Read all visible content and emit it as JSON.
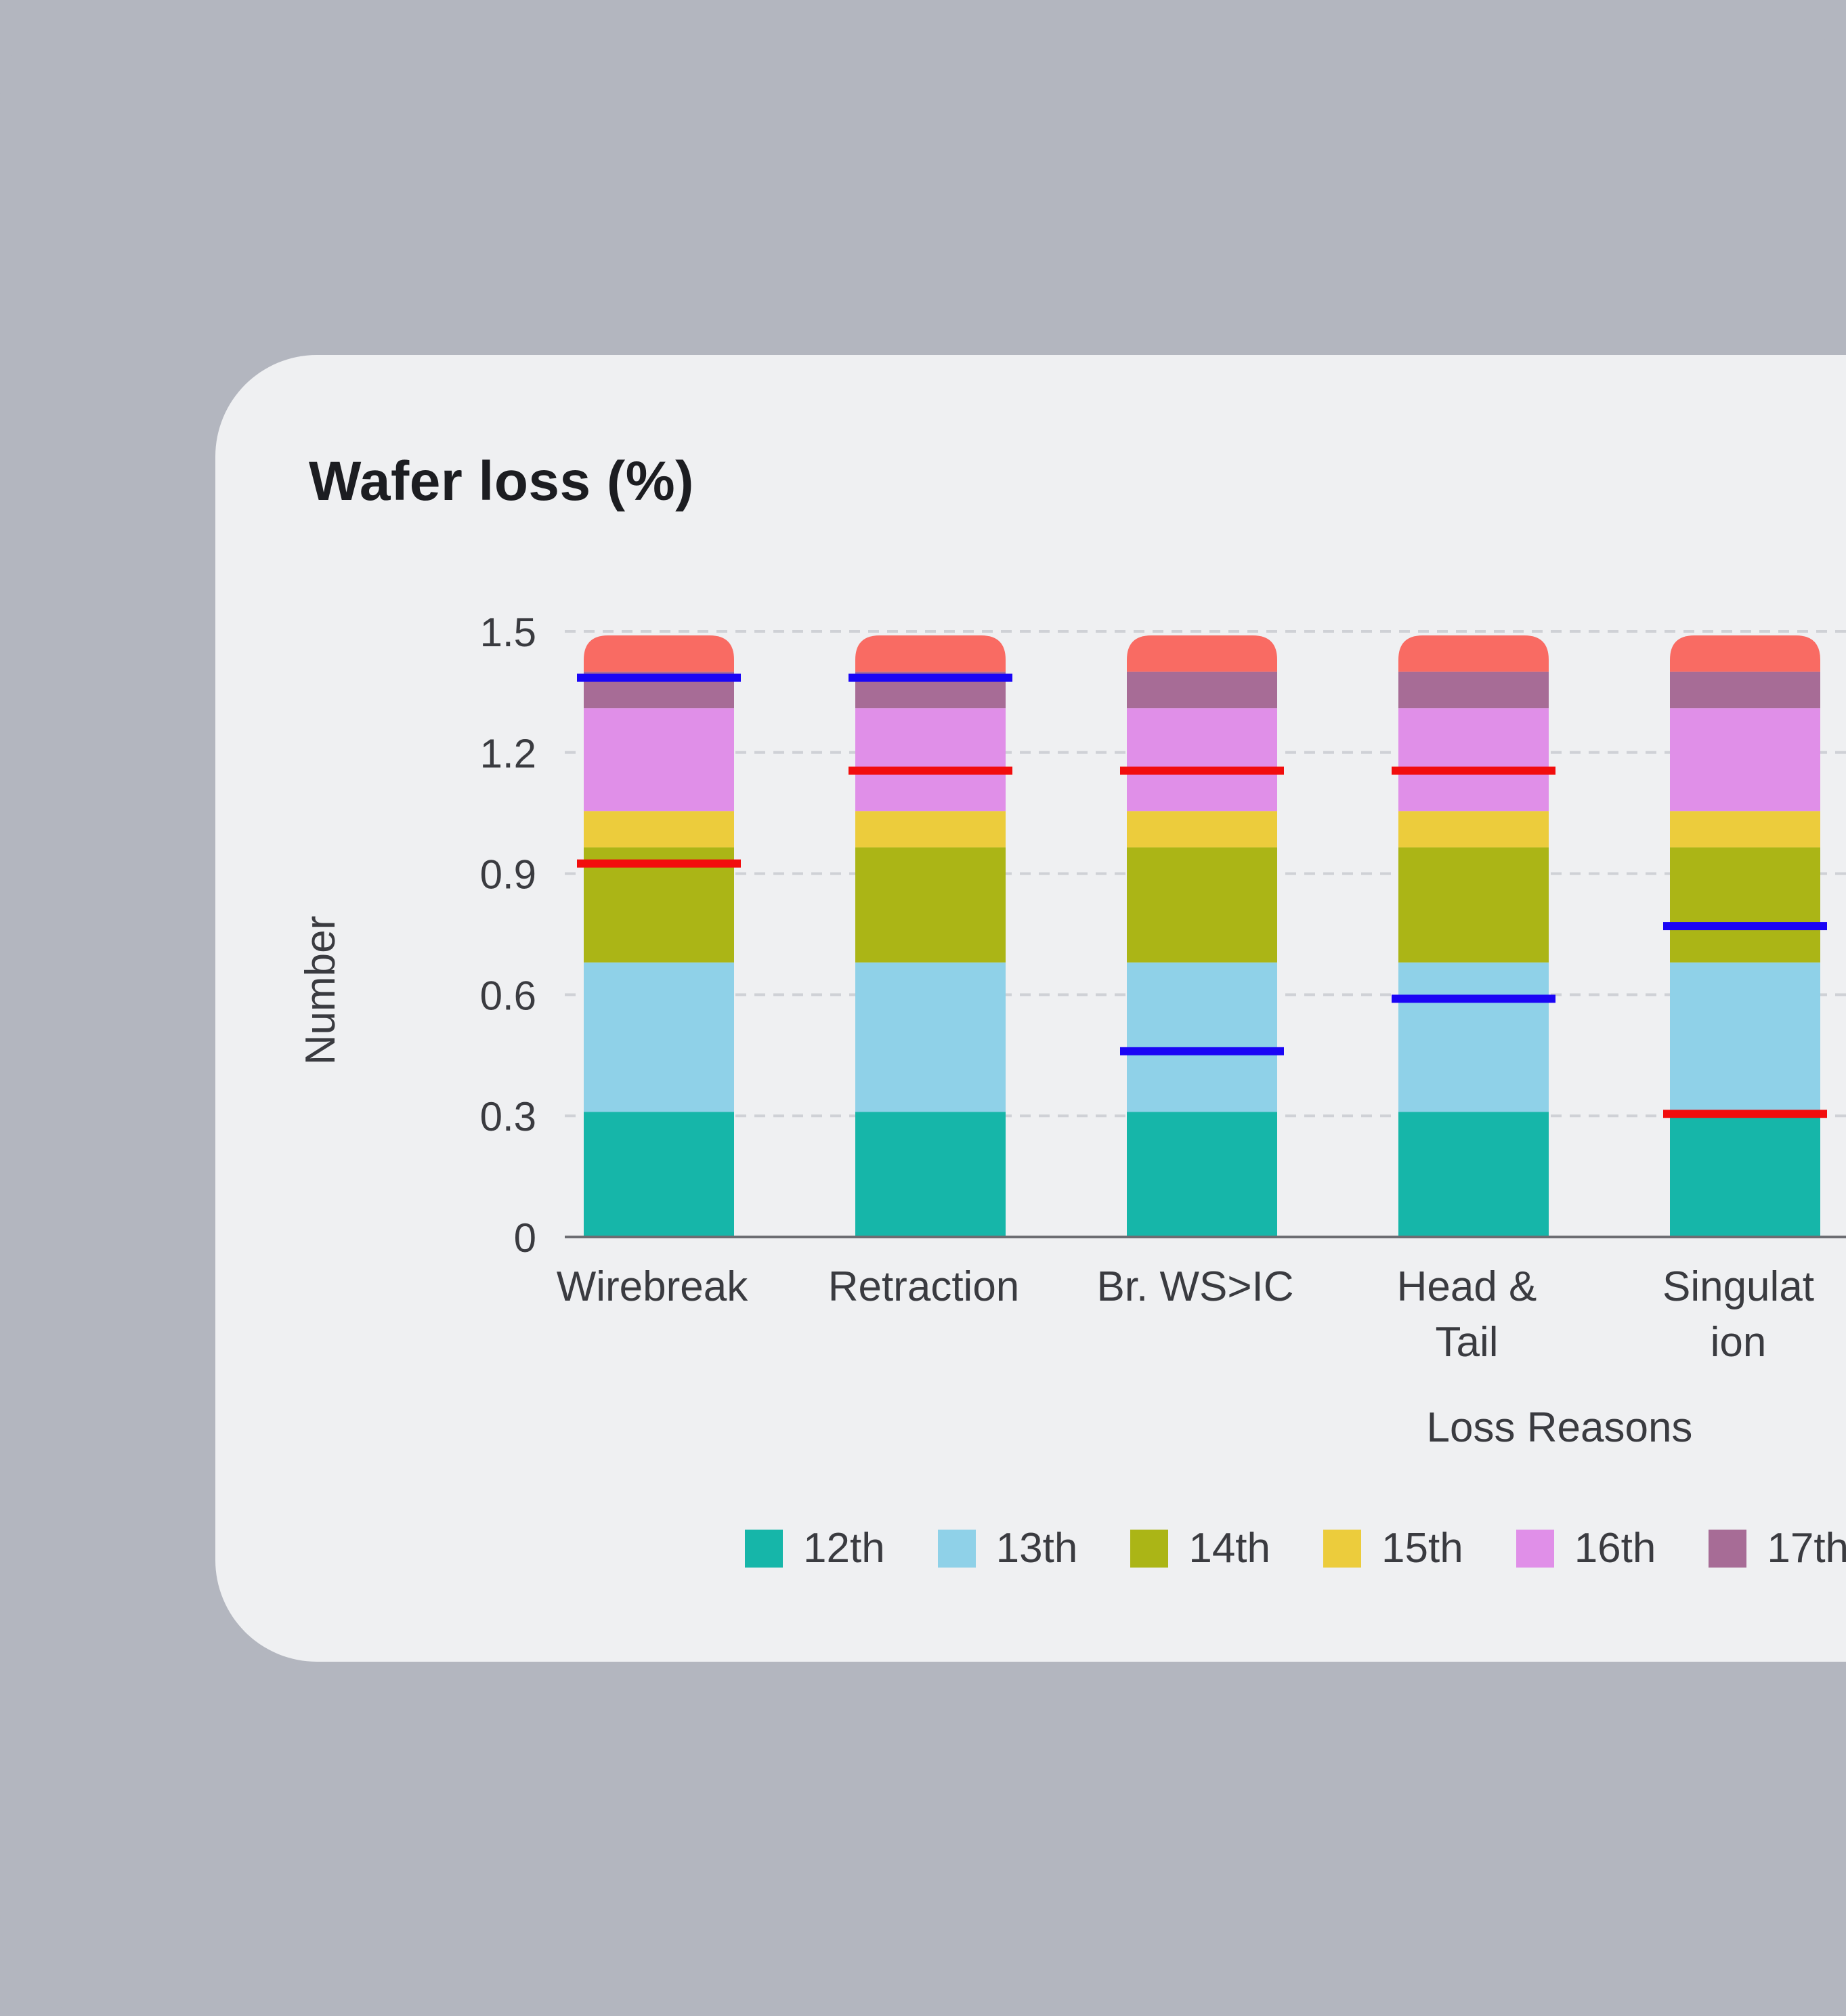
{
  "card": {
    "title": "Wafer loss (%)"
  },
  "chart_data": {
    "type": "bar",
    "stacked": true,
    "title": "Wafer loss (%)",
    "xlabel": "Loss Reasons",
    "ylabel": "Number",
    "ylim": [
      0,
      1.5
    ],
    "yticks": [
      0,
      0.3,
      0.6,
      0.9,
      1.2,
      1.5
    ],
    "ytick_labels": [
      "0",
      "0.3",
      "0.6",
      "0.9",
      "1.2",
      "1.5"
    ],
    "grid": true,
    "categories": [
      {
        "lines": [
          "Wirebreak"
        ]
      },
      {
        "lines": [
          "Retraction"
        ]
      },
      {
        "lines": [
          "Br. WS>IC"
        ]
      },
      {
        "lines": [
          "Head &",
          "Tail"
        ]
      },
      {
        "lines": [
          "Singulat",
          "ion"
        ]
      }
    ],
    "series": [
      {
        "name": "12th",
        "color": "#16b6a9",
        "values": [
          0.31,
          0.31,
          0.31,
          0.31,
          0.31
        ]
      },
      {
        "name": "13th",
        "color": "#8fd1e8",
        "values": [
          0.37,
          0.37,
          0.37,
          0.37,
          0.37
        ]
      },
      {
        "name": "14th",
        "color": "#abb516",
        "values": [
          0.285,
          0.285,
          0.285,
          0.285,
          0.285
        ]
      },
      {
        "name": "15th",
        "color": "#eccc3c",
        "values": [
          0.09,
          0.09,
          0.09,
          0.09,
          0.09
        ]
      },
      {
        "name": "16th",
        "color": "#e08fe8",
        "values": [
          0.255,
          0.255,
          0.255,
          0.255,
          0.255
        ]
      },
      {
        "name": "17th",
        "color": "#a76c96",
        "values": [
          0.09,
          0.09,
          0.09,
          0.09,
          0.09
        ]
      },
      {
        "name": "",
        "color": "#f96b63",
        "values": [
          0.09,
          0.09,
          0.09,
          0.09,
          0.09
        ]
      }
    ],
    "reference_lines": [
      {
        "color": "#1a05f5",
        "values": [
          1.385,
          1.385,
          0.46,
          0.59,
          0.77
        ]
      },
      {
        "color": "#f20d0d",
        "values": [
          0.925,
          1.155,
          1.155,
          1.155,
          0.305
        ]
      }
    ],
    "legend": [
      {
        "name": "12th",
        "color": "#16b6a9"
      },
      {
        "name": "13th",
        "color": "#8fd1e8"
      },
      {
        "name": "14th",
        "color": "#abb516"
      },
      {
        "name": "15th",
        "color": "#eccc3c"
      },
      {
        "name": "16th",
        "color": "#e08fe8"
      },
      {
        "name": "17th",
        "color": "#a76c96"
      }
    ]
  }
}
